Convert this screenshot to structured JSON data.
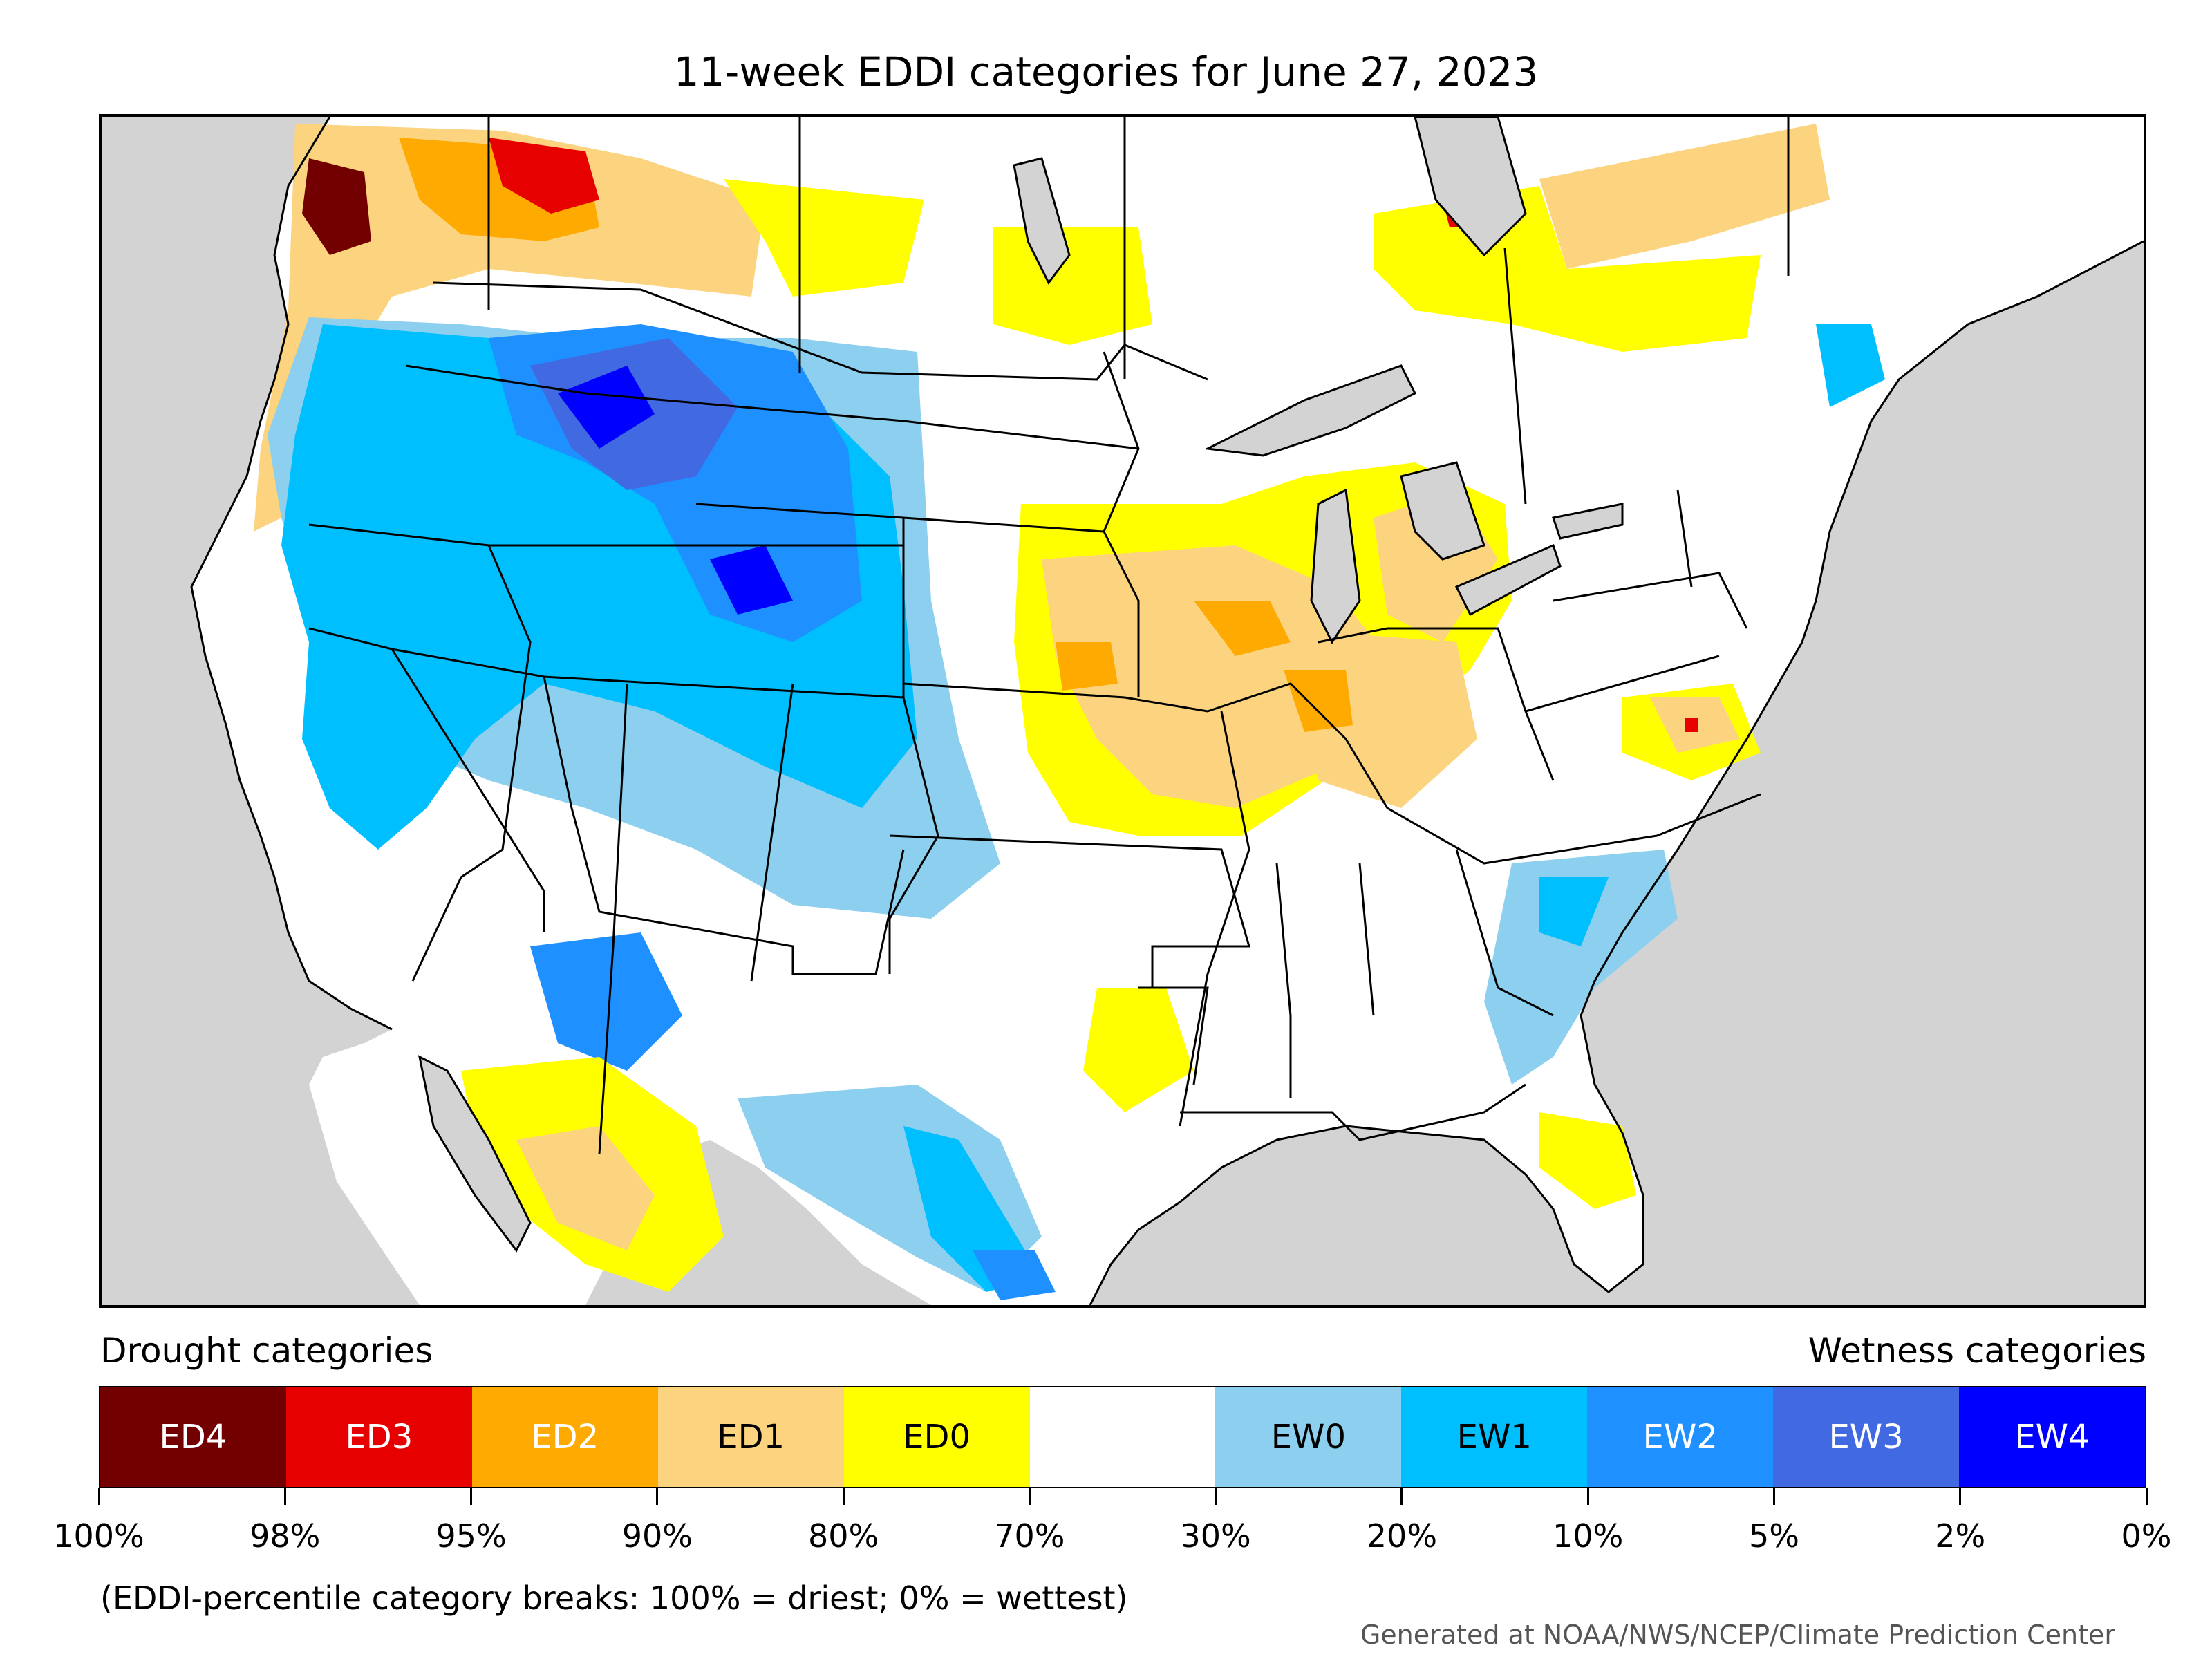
{
  "title": "11-week EDDI categories for June 27, 2023",
  "legend": {
    "drought_header": "Drought categories",
    "wetness_header": "Wetness categories",
    "categories": [
      {
        "label": "ED4",
        "color": "#730000",
        "text_color": "#ffffff"
      },
      {
        "label": "ED3",
        "color": "#e60000",
        "text_color": "#ffffff"
      },
      {
        "label": "ED2",
        "color": "#ffaa00",
        "text_color": "#ffffff"
      },
      {
        "label": "ED1",
        "color": "#fcd37f",
        "text_color": "#000000"
      },
      {
        "label": "ED0",
        "color": "#ffff00",
        "text_color": "#000000"
      },
      {
        "label": "",
        "color": "#ffffff",
        "text_color": "#000000"
      },
      {
        "label": "EW0",
        "color": "#8ccfee",
        "text_color": "#000000"
      },
      {
        "label": "EW1",
        "color": "#00bfff",
        "text_color": "#000000"
      },
      {
        "label": "EW2",
        "color": "#1e90ff",
        "text_color": "#ffffff"
      },
      {
        "label": "EW3",
        "color": "#4169e1",
        "text_color": "#ffffff"
      },
      {
        "label": "EW4",
        "color": "#0000ff",
        "text_color": "#ffffff"
      }
    ],
    "breaks": [
      "100%",
      "98%",
      "95%",
      "90%",
      "80%",
      "70%",
      "30%",
      "20%",
      "10%",
      "5%",
      "2%",
      "0%"
    ]
  },
  "note": "(EDDI-percentile category breaks: 100% = driest; 0% = wettest)",
  "credit": "Generated at NOAA/NWS/NCEP/Climate Prediction Center",
  "colors": {
    "water": "#d3d3d3",
    "land": "#ffffff",
    "border": "#000000"
  }
}
